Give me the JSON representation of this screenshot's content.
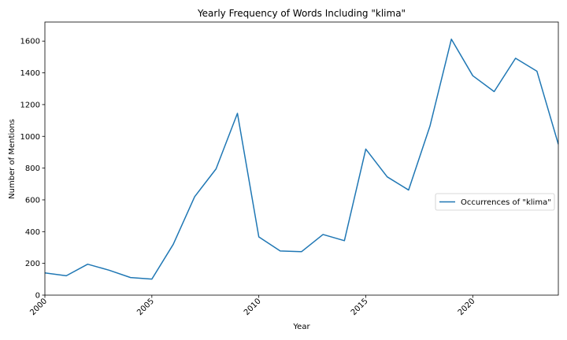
{
  "chart_data": {
    "type": "line",
    "title": "Yearly Frequency of Words Including \"klima\"",
    "xlabel": "Year",
    "ylabel": "Number of Mentions",
    "xlim": [
      2000,
      2024
    ],
    "ylim": [
      0,
      1720
    ],
    "x_ticks": [
      2000,
      2005,
      2010,
      2015,
      2020
    ],
    "y_ticks": [
      0,
      200,
      400,
      600,
      800,
      1000,
      1200,
      1400,
      1600
    ],
    "grid": false,
    "legend_position": "center-right",
    "series": [
      {
        "name": "Occurrences of \"klima\"",
        "color": "#1f77b4",
        "x": [
          2000,
          2001,
          2002,
          2003,
          2004,
          2005,
          2006,
          2007,
          2008,
          2009,
          2010,
          2011,
          2012,
          2013,
          2014,
          2015,
          2016,
          2017,
          2018,
          2019,
          2020,
          2021,
          2022,
          2023,
          2024
        ],
        "y": [
          140,
          122,
          195,
          157,
          111,
          101,
          320,
          620,
          795,
          1145,
          367,
          278,
          274,
          382,
          343,
          920,
          745,
          662,
          1065,
          1612,
          1382,
          1282,
          1492,
          1410,
          950
        ]
      }
    ]
  }
}
